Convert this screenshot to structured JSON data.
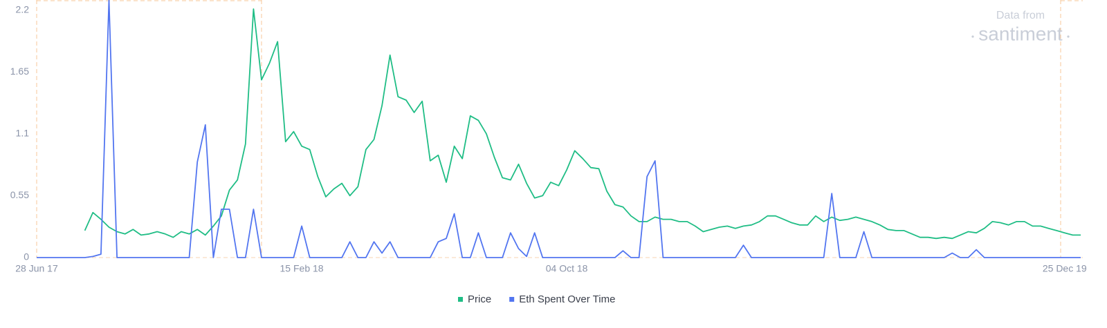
{
  "chart_data": {
    "type": "line",
    "watermark": {
      "line1": "Data from",
      "line2": "santiment"
    },
    "categories": [
      "28 Jun 17",
      null,
      null,
      null,
      null,
      null,
      null,
      null,
      null,
      null,
      null,
      null,
      null,
      null,
      null,
      null,
      null,
      null,
      null,
      null,
      null,
      null,
      null,
      null,
      null,
      null,
      null,
      null,
      null,
      null,
      null,
      null,
      null,
      "15 Feb 18",
      null,
      null,
      null,
      null,
      null,
      null,
      null,
      null,
      null,
      null,
      null,
      null,
      null,
      null,
      null,
      null,
      null,
      null,
      null,
      null,
      null,
      null,
      null,
      null,
      null,
      null,
      null,
      null,
      null,
      null,
      null,
      null,
      "04 Oct 18",
      null,
      null,
      null,
      null,
      null,
      null,
      null,
      null,
      null,
      null,
      null,
      null,
      null,
      null,
      null,
      null,
      null,
      null,
      null,
      null,
      null,
      null,
      null,
      null,
      null,
      null,
      null,
      null,
      null,
      null,
      null,
      null,
      null,
      null,
      null,
      null,
      null,
      null,
      null,
      null,
      null,
      null,
      null,
      null,
      null,
      null,
      null,
      null,
      null,
      null,
      null,
      null,
      null,
      null,
      null,
      null,
      null,
      null,
      null,
      null,
      null,
      "25 Dec 19",
      null,
      null
    ],
    "series": [
      {
        "name": "Price",
        "color": "#1fbd85",
        "values": [
          null,
          null,
          null,
          null,
          null,
          null,
          0.24,
          0.4,
          0.34,
          0.27,
          0.23,
          0.21,
          0.25,
          0.2,
          0.21,
          0.23,
          0.21,
          0.18,
          0.23,
          0.21,
          0.25,
          0.2,
          0.28,
          0.37,
          0.6,
          0.69,
          1.01,
          2.21,
          1.58,
          1.73,
          1.92,
          1.03,
          1.12,
          0.99,
          0.96,
          0.72,
          0.54,
          0.61,
          0.66,
          0.55,
          0.63,
          0.96,
          1.05,
          1.35,
          1.8,
          1.43,
          1.4,
          1.29,
          1.39,
          0.86,
          0.91,
          0.67,
          0.99,
          0.88,
          1.26,
          1.22,
          1.1,
          0.89,
          0.71,
          0.69,
          0.83,
          0.66,
          0.53,
          0.55,
          0.67,
          0.64,
          0.78,
          0.95,
          0.88,
          0.8,
          0.79,
          0.59,
          0.47,
          0.45,
          0.37,
          0.32,
          0.32,
          0.36,
          0.34,
          0.34,
          0.32,
          0.32,
          0.28,
          0.23,
          0.25,
          0.27,
          0.28,
          0.26,
          0.28,
          0.29,
          0.32,
          0.37,
          0.37,
          0.34,
          0.31,
          0.29,
          0.29,
          0.37,
          0.32,
          0.36,
          0.33,
          0.34,
          0.36,
          0.34,
          0.32,
          0.29,
          0.25,
          0.24,
          0.24,
          0.21,
          0.18,
          0.18,
          0.17,
          0.18,
          0.17,
          0.2,
          0.23,
          0.22,
          0.26,
          0.32,
          0.31,
          0.29,
          0.32,
          0.32,
          0.28,
          0.28,
          0.26,
          0.24,
          0.22,
          0.2,
          0.2
        ]
      },
      {
        "name": "Eth Spent Over Time",
        "color": "#5275f0",
        "values": [
          0,
          0,
          0,
          0,
          0,
          0,
          0,
          0.01,
          0.03,
          2.29,
          0,
          0,
          0,
          0,
          0,
          0,
          0,
          0,
          0,
          0,
          0.85,
          1.18,
          0,
          0.43,
          0.43,
          0,
          0,
          0.43,
          0,
          0,
          0,
          0,
          0,
          0.28,
          0,
          0,
          0,
          0,
          0,
          0.14,
          0,
          0,
          0.14,
          0.04,
          0.14,
          0,
          0,
          0,
          0,
          0,
          0.14,
          0.17,
          0.39,
          0,
          0,
          0.22,
          0,
          0,
          0,
          0.22,
          0.08,
          0.01,
          0.22,
          0,
          0,
          0,
          0,
          0,
          0,
          0,
          0,
          0,
          0,
          0.06,
          0,
          0,
          0.72,
          0.86,
          0,
          0,
          0,
          0,
          0,
          0,
          0,
          0,
          0,
          0,
          0.11,
          0,
          0,
          0,
          0,
          0,
          0,
          0,
          0,
          0,
          0,
          0.57,
          0,
          0,
          0,
          0.23,
          0,
          0,
          0,
          0,
          0,
          0,
          0,
          0,
          0,
          0,
          0.04,
          0,
          0,
          0.07,
          0,
          0,
          0,
          0,
          0,
          0,
          0,
          0,
          0,
          0,
          0,
          0,
          0
        ]
      }
    ],
    "ylim": [
      0,
      2.29
    ],
    "yticks": [
      0,
      0.55,
      1.1,
      1.65,
      2.2
    ],
    "grid": false
  }
}
